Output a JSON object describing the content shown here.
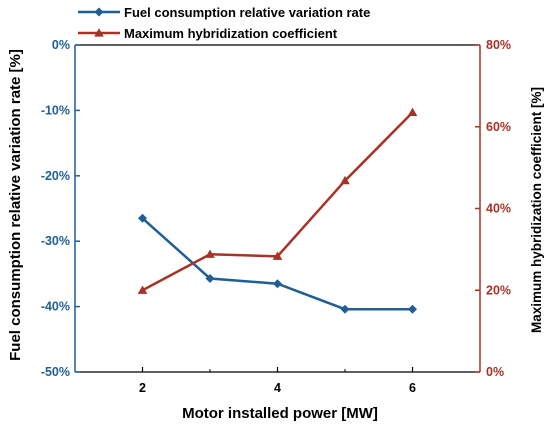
{
  "chart_data": {
    "type": "line",
    "xlabel": "Motor installed power [MW]",
    "x": [
      2,
      3,
      4,
      5,
      6
    ],
    "xlim": [
      1,
      7
    ],
    "xticks": [
      2,
      4,
      6
    ],
    "series": [
      {
        "name": "Fuel consumption relative variation rate",
        "axis": "left",
        "marker": "diamond",
        "color": "#1f5f95",
        "values": [
          -26.5,
          -35.7,
          -36.5,
          -40.4,
          -40.4
        ]
      },
      {
        "name": "Maximum hybridization coefficient",
        "axis": "right",
        "marker": "triangle",
        "color": "#a93226",
        "values": [
          20,
          28.8,
          28.3,
          46.8,
          63.5
        ]
      }
    ],
    "y_left": {
      "label": "Fuel consumption relative variation rate [%]",
      "lim": [
        -50,
        0
      ],
      "ticks": [
        0,
        -10,
        -20,
        -30,
        -40,
        -50
      ],
      "tick_labels": [
        "0%",
        "-10%",
        "-20%",
        "-30%",
        "-40%",
        "-50%"
      ],
      "color": "#1f5f95"
    },
    "y_right": {
      "label": "Maximum hybridization coefficient [%]",
      "lim": [
        0,
        80
      ],
      "ticks": [
        0,
        20,
        40,
        60,
        80
      ],
      "tick_labels": [
        "0%",
        "20%",
        "40%",
        "60%",
        "80%"
      ],
      "color": "#a93226"
    },
    "legend_position": "top",
    "grid": false
  }
}
